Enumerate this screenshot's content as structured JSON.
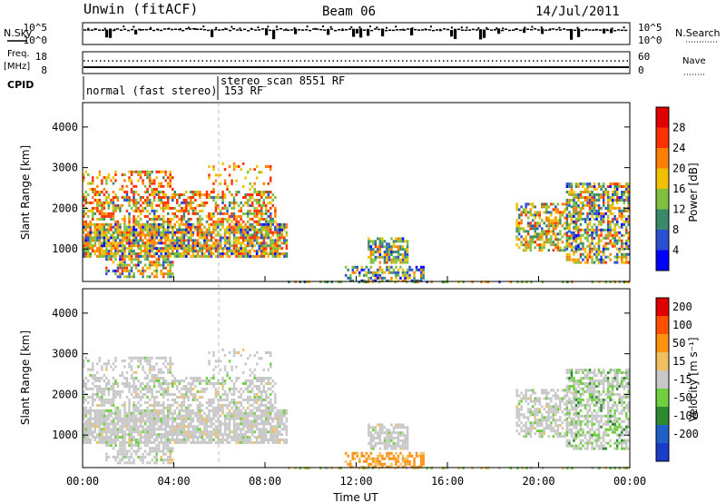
{
  "header": {
    "station": "Unwin (fitACF)",
    "beam": "Beam 06",
    "date": "14/Jul/2011"
  },
  "strips": {
    "nsky_label": "N.Sky",
    "nsearch_label": "N.Search",
    "noise_ticks": [
      "10^5",
      "10^0"
    ],
    "freq_label": "Freq.",
    "freq_unit": "[MHz]",
    "freq_ticks": [
      "18",
      "8"
    ],
    "nave_label": "Nave",
    "nave_ticks": [
      "60",
      "0"
    ],
    "cpid_label": "CPID",
    "cpid_1": "normal (fast stereo) 153 RF",
    "cpid_2": "stereo_scan 8551 RF"
  },
  "chart_data": [
    {
      "type": "heatmap",
      "name": "power",
      "ylabel": "Slant Range [km]",
      "xlabel": "",
      "y_ticks": [
        "1000",
        "2000",
        "3000",
        "4000"
      ],
      "ylim": [
        200,
        4600
      ],
      "colorbar_label": "Power [dB]",
      "colorbar_ticks": [
        "4",
        "8",
        "12",
        "16",
        "20",
        "24",
        "28"
      ],
      "colors": [
        "#0000ff",
        "#2a4fd0",
        "#3a8a6a",
        "#80c040",
        "#f0c000",
        "#ff8000",
        "#ff3000",
        "#e00000"
      ]
    },
    {
      "type": "heatmap",
      "name": "velocity",
      "ylabel": "Slant Range [km]",
      "xlabel": "Time UT",
      "x_ticks": [
        "00:00",
        "04:00",
        "08:00",
        "12:00",
        "16:00",
        "20:00",
        "00:00"
      ],
      "xlim_hours": [
        0,
        24
      ],
      "y_ticks": [
        "1000",
        "2000",
        "3000",
        "4000"
      ],
      "ylim": [
        200,
        4600
      ],
      "colorbar_label": "Velocity [m s⁻¹]",
      "colorbar_ticks": [
        "200",
        "100",
        "50",
        "15",
        "-15",
        "-50",
        "-100",
        "-200"
      ],
      "colors": [
        "#1a3cc8",
        "#2060c8",
        "#2e8a2e",
        "#6fcf3f",
        "#c8c8c8",
        "#f0c060",
        "#ff9010",
        "#ff5000",
        "#e00000"
      ]
    }
  ]
}
